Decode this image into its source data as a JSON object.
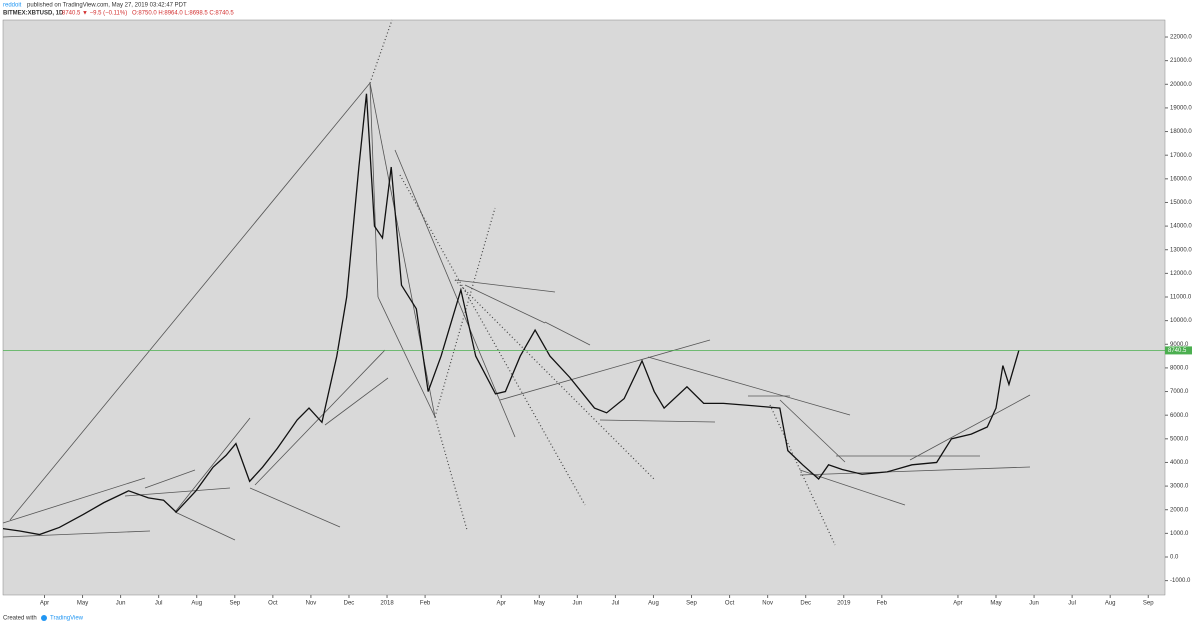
{
  "chart_data": {
    "type": "line",
    "header": {
      "author": "reddoit",
      "published": "published on TradingView.com, May 27, 2019 03:42:47 PDT",
      "symbol": "BITMEX:XBTUSD, 1D",
      "change": "8740.5 ▼ −9.5 (−0.11%)",
      "ohlc": "O:8750.0 H:8964.0 L:8698.5 C:8740.5"
    },
    "footer": {
      "created": "Created with",
      "brand": "TradingView"
    },
    "series": [
      {
        "name": "XBTUSD",
        "color": "#111111",
        "x": [
          -0.09,
          0.35,
          0.87,
          1.39,
          2.02,
          2.56,
          3.21,
          3.73,
          4.13,
          4.46,
          4.98,
          5.43,
          5.77,
          6.03,
          6.39,
          6.73,
          7.12,
          7.64,
          7.95,
          8.29,
          8.68,
          8.94,
          9.26,
          9.46,
          9.67,
          9.88,
          10.11,
          10.38,
          10.77,
          11.08,
          11.42,
          11.94,
          12.33,
          12.85,
          13.11,
          13.5,
          13.89,
          14.28,
          14.8,
          15.45,
          15.77,
          16.23,
          16.7,
          17.02,
          17.28,
          17.88,
          18.32,
          18.84,
          19.62,
          20.32,
          20.53,
          20.92,
          21.34,
          21.6,
          21.96,
          22.48,
          23.14,
          23.79,
          24.44,
          24.83,
          25.35,
          25.77,
          26.0,
          26.18,
          26.34,
          26.6
        ],
        "values": [
          1200,
          1100,
          950,
          1250,
          1800,
          2300,
          2800,
          2500,
          2400,
          1900,
          2800,
          3800,
          4300,
          4800,
          3200,
          3800,
          4600,
          5800,
          6300,
          5700,
          8500,
          11000,
          16500,
          19600,
          14000,
          13500,
          16500,
          11500,
          10500,
          7000,
          8500,
          11300,
          8500,
          6900,
          7000,
          8500,
          9600,
          8500,
          7600,
          6300,
          6100,
          6700,
          8300,
          7000,
          6300,
          7200,
          6500,
          6500,
          6400,
          6300,
          4500,
          3900,
          3300,
          3900,
          3700,
          3500,
          3600,
          3900,
          4000,
          5000,
          5200,
          5500,
          6300,
          8100,
          7300,
          8740.5
        ]
      }
    ],
    "last_price": 8740.5,
    "last_price_label": "8740.5",
    "last_price_color": "#4caf50",
    "xlim": [
      -0.09,
      30.44
    ],
    "xticks": [
      {
        "value": 1,
        "label": "Apr"
      },
      {
        "value": 2,
        "label": "May"
      },
      {
        "value": 3,
        "label": "Jun"
      },
      {
        "value": 4,
        "label": "Jul"
      },
      {
        "value": 5,
        "label": "Aug"
      },
      {
        "value": 6,
        "label": "Sep"
      },
      {
        "value": 7,
        "label": "Oct"
      },
      {
        "value": 8,
        "label": "Nov"
      },
      {
        "value": 9,
        "label": "Dec"
      },
      {
        "value": 10,
        "label": "2018"
      },
      {
        "value": 11,
        "label": "Feb"
      },
      {
        "value": 13,
        "label": "Apr"
      },
      {
        "value": 14,
        "label": "May"
      },
      {
        "value": 15,
        "label": "Jun"
      },
      {
        "value": 16,
        "label": "Jul"
      },
      {
        "value": 17,
        "label": "Aug"
      },
      {
        "value": 18,
        "label": "Sep"
      },
      {
        "value": 19,
        "label": "Oct"
      },
      {
        "value": 20,
        "label": "Nov"
      },
      {
        "value": 21,
        "label": "Dec"
      },
      {
        "value": 22,
        "label": "2019"
      },
      {
        "value": 23,
        "label": "Feb"
      },
      {
        "value": 25,
        "label": "Apr"
      },
      {
        "value": 26,
        "label": "May"
      },
      {
        "value": 27,
        "label": "Jun"
      },
      {
        "value": 28,
        "label": "Jul"
      },
      {
        "value": 29,
        "label": "Aug"
      },
      {
        "value": 30,
        "label": "Sep"
      }
    ],
    "ylim": [
      -1608,
      22720
    ],
    "yticks": [
      {
        "value": 22000,
        "label": "22000.0"
      },
      {
        "value": 21000,
        "label": "21000.0"
      },
      {
        "value": 20000,
        "label": "20000.0"
      },
      {
        "value": 19000,
        "label": "19000.0"
      },
      {
        "value": 18000,
        "label": "18000.0"
      },
      {
        "value": 17000,
        "label": "17000.0"
      },
      {
        "value": 16000,
        "label": "16000.0"
      },
      {
        "value": 15000,
        "label": "15000.0"
      },
      {
        "value": 14000,
        "label": "14000.0"
      },
      {
        "value": 13000,
        "label": "13000.0"
      },
      {
        "value": 12000,
        "label": "12000.0"
      },
      {
        "value": 11000,
        "label": "11000.0"
      },
      {
        "value": 10000,
        "label": "10000.0"
      },
      {
        "value": 9000,
        "label": "9000.0"
      },
      {
        "value": 8000,
        "label": "8000.0"
      },
      {
        "value": 7000,
        "label": "7000.0"
      },
      {
        "value": 6000,
        "label": "6000.0"
      },
      {
        "value": 5000,
        "label": "5000.0"
      },
      {
        "value": 4000,
        "label": "4000.0"
      },
      {
        "value": 3000,
        "label": "3000.0"
      },
      {
        "value": 2000,
        "label": "2000.0"
      },
      {
        "value": 1000,
        "label": "1000.0"
      },
      {
        "value": 0,
        "label": "0.0"
      },
      {
        "value": -1000,
        "label": "-1000.0"
      }
    ]
  }
}
